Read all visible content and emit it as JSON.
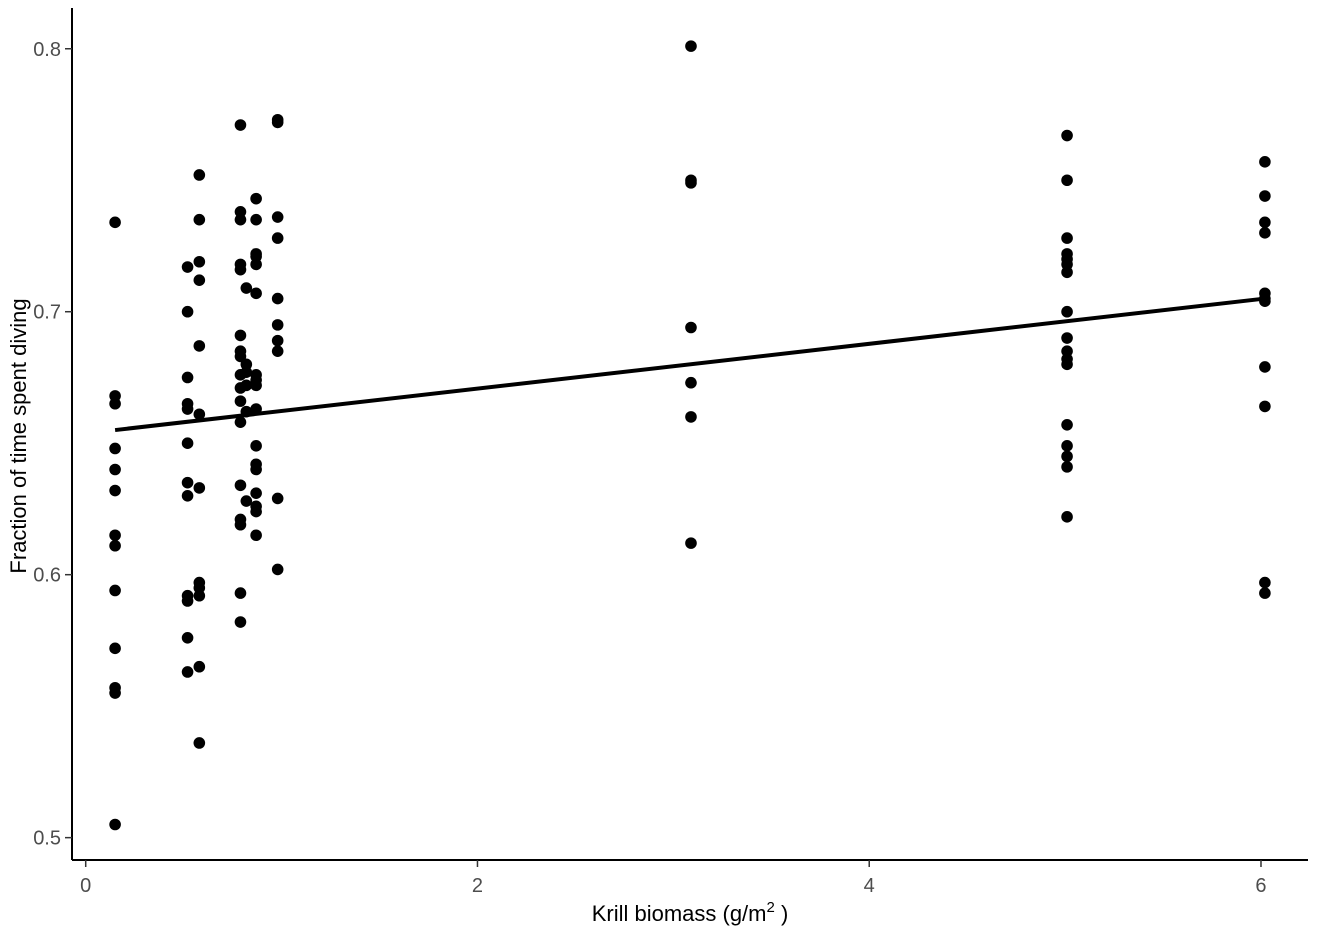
{
  "chart_data": {
    "type": "scatter",
    "xlabel": "Krill biomass (g/m",
    "xlabel_superscript": "2",
    "xlabel_suffix": " )",
    "ylabel": "Fraction of time spent diving",
    "xlim": [
      -0.07,
      6.24
    ],
    "ylim": [
      0.4915,
      0.8155
    ],
    "x_ticks": [
      0,
      2,
      4,
      6
    ],
    "x_tick_labels": [
      "0",
      "2",
      "4",
      "6"
    ],
    "y_ticks": [
      0.5,
      0.6,
      0.7,
      0.8
    ],
    "y_tick_labels": [
      "0.5",
      "0.6",
      "0.7",
      "0.8"
    ],
    "grid": false,
    "legend": "none",
    "point_color": "#000000",
    "points": [
      [
        0.15,
        0.734
      ],
      [
        0.15,
        0.668
      ],
      [
        0.15,
        0.665
      ],
      [
        0.15,
        0.648
      ],
      [
        0.15,
        0.64
      ],
      [
        0.15,
        0.632
      ],
      [
        0.15,
        0.615
      ],
      [
        0.15,
        0.611
      ],
      [
        0.15,
        0.594
      ],
      [
        0.15,
        0.572
      ],
      [
        0.15,
        0.557
      ],
      [
        0.15,
        0.555
      ],
      [
        0.15,
        0.505
      ],
      [
        0.52,
        0.717
      ],
      [
        0.52,
        0.7
      ],
      [
        0.52,
        0.675
      ],
      [
        0.52,
        0.665
      ],
      [
        0.52,
        0.663
      ],
      [
        0.52,
        0.65
      ],
      [
        0.52,
        0.635
      ],
      [
        0.52,
        0.63
      ],
      [
        0.52,
        0.592
      ],
      [
        0.52,
        0.59
      ],
      [
        0.52,
        0.576
      ],
      [
        0.52,
        0.563
      ],
      [
        0.58,
        0.752
      ],
      [
        0.58,
        0.735
      ],
      [
        0.58,
        0.719
      ],
      [
        0.58,
        0.712
      ],
      [
        0.58,
        0.687
      ],
      [
        0.58,
        0.661
      ],
      [
        0.58,
        0.633
      ],
      [
        0.58,
        0.597
      ],
      [
        0.58,
        0.595
      ],
      [
        0.58,
        0.592
      ],
      [
        0.58,
        0.565
      ],
      [
        0.58,
        0.536
      ],
      [
        0.79,
        0.771
      ],
      [
        0.79,
        0.738
      ],
      [
        0.79,
        0.735
      ],
      [
        0.79,
        0.718
      ],
      [
        0.79,
        0.716
      ],
      [
        0.79,
        0.691
      ],
      [
        0.79,
        0.685
      ],
      [
        0.79,
        0.683
      ],
      [
        0.79,
        0.676
      ],
      [
        0.79,
        0.671
      ],
      [
        0.79,
        0.666
      ],
      [
        0.79,
        0.658
      ],
      [
        0.79,
        0.634
      ],
      [
        0.79,
        0.621
      ],
      [
        0.79,
        0.619
      ],
      [
        0.79,
        0.593
      ],
      [
        0.79,
        0.582
      ],
      [
        0.82,
        0.709
      ],
      [
        0.82,
        0.68
      ],
      [
        0.82,
        0.677
      ],
      [
        0.82,
        0.672
      ],
      [
        0.82,
        0.662
      ],
      [
        0.82,
        0.628
      ],
      [
        0.87,
        0.743
      ],
      [
        0.87,
        0.735
      ],
      [
        0.87,
        0.722
      ],
      [
        0.87,
        0.721
      ],
      [
        0.87,
        0.718
      ],
      [
        0.87,
        0.707
      ],
      [
        0.87,
        0.676
      ],
      [
        0.87,
        0.674
      ],
      [
        0.87,
        0.672
      ],
      [
        0.87,
        0.663
      ],
      [
        0.87,
        0.649
      ],
      [
        0.87,
        0.642
      ],
      [
        0.87,
        0.64
      ],
      [
        0.87,
        0.631
      ],
      [
        0.87,
        0.626
      ],
      [
        0.87,
        0.624
      ],
      [
        0.87,
        0.615
      ],
      [
        0.98,
        0.773
      ],
      [
        0.98,
        0.772
      ],
      [
        0.98,
        0.736
      ],
      [
        0.98,
        0.728
      ],
      [
        0.98,
        0.705
      ],
      [
        0.98,
        0.695
      ],
      [
        0.98,
        0.689
      ],
      [
        0.98,
        0.685
      ],
      [
        0.98,
        0.629
      ],
      [
        0.98,
        0.602
      ],
      [
        3.09,
        0.801
      ],
      [
        3.09,
        0.75
      ],
      [
        3.09,
        0.749
      ],
      [
        3.09,
        0.694
      ],
      [
        3.09,
        0.673
      ],
      [
        3.09,
        0.66
      ],
      [
        3.09,
        0.612
      ],
      [
        5.01,
        0.767
      ],
      [
        5.01,
        0.75
      ],
      [
        5.01,
        0.728
      ],
      [
        5.01,
        0.722
      ],
      [
        5.01,
        0.72
      ],
      [
        5.01,
        0.718
      ],
      [
        5.01,
        0.715
      ],
      [
        5.01,
        0.7
      ],
      [
        5.01,
        0.69
      ],
      [
        5.01,
        0.685
      ],
      [
        5.01,
        0.682
      ],
      [
        5.01,
        0.68
      ],
      [
        5.01,
        0.657
      ],
      [
        5.01,
        0.649
      ],
      [
        5.01,
        0.645
      ],
      [
        5.01,
        0.641
      ],
      [
        5.01,
        0.622
      ],
      [
        6.02,
        0.757
      ],
      [
        6.02,
        0.744
      ],
      [
        6.02,
        0.734
      ],
      [
        6.02,
        0.73
      ],
      [
        6.02,
        0.707
      ],
      [
        6.02,
        0.705
      ],
      [
        6.02,
        0.704
      ],
      [
        6.02,
        0.679
      ],
      [
        6.02,
        0.664
      ],
      [
        6.02,
        0.597
      ],
      [
        6.02,
        0.593
      ]
    ],
    "fit_line": {
      "x": [
        0.15,
        6.02
      ],
      "y": [
        0.655,
        0.705
      ]
    }
  }
}
